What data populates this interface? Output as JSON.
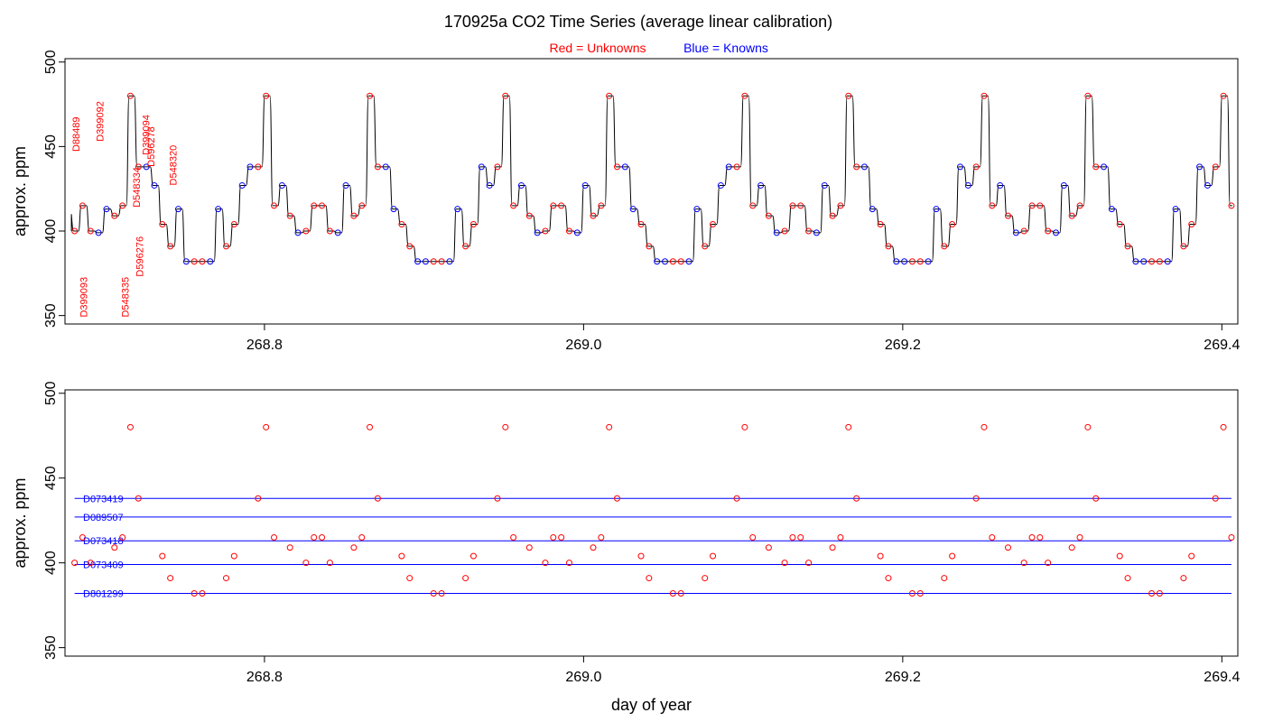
{
  "title": "170925a   CO2 Time Series (average linear calibration)",
  "legend": {
    "unknowns": "Red = Unknowns",
    "knowns": "Blue = Knowns"
  },
  "colors": {
    "unknown": "#ff0000",
    "known": "#0000ff",
    "line": "#000000"
  },
  "chart_data": [
    {
      "type": "line",
      "ylabel": "approx. ppm",
      "xlabel": "",
      "xlim": [
        268.675,
        269.41
      ],
      "ylim": [
        345,
        502
      ],
      "x_ticks": [
        "268.8",
        "269.0",
        "269.2",
        "269.4"
      ],
      "y_ticks": [
        "350",
        "400",
        "450",
        "500"
      ],
      "x_tick_values": [
        268.8,
        269.0,
        269.2,
        269.4
      ],
      "y_tick_values": [
        350,
        400,
        450,
        500
      ],
      "start_day": 268.679,
      "sample_interval_days": 0.005,
      "series": [
        {
          "name": "Unknowns",
          "points": [
            [
              268.681,
              400
            ],
            [
              268.686,
              415
            ],
            [
              268.691,
              400
            ],
            [
              268.706,
              409
            ],
            [
              268.711,
              415
            ],
            [
              268.716,
              480
            ],
            [
              268.721,
              438
            ],
            [
              268.736,
              404
            ],
            [
              268.741,
              391
            ],
            [
              268.756,
              382
            ],
            [
              268.761,
              382
            ],
            [
              268.776,
              391
            ],
            [
              268.781,
              404
            ],
            [
              268.796,
              438
            ],
            [
              268.801,
              480
            ],
            [
              268.806,
              415
            ],
            [
              268.816,
              409
            ],
            [
              268.826,
              400
            ],
            [
              268.831,
              415
            ],
            [
              268.836,
              415
            ],
            [
              268.841,
              400
            ],
            [
              268.856,
              409
            ],
            [
              268.861,
              415
            ],
            [
              268.866,
              480
            ],
            [
              268.871,
              438
            ],
            [
              268.886,
              404
            ],
            [
              268.891,
              391
            ],
            [
              268.906,
              382
            ],
            [
              268.911,
              382
            ],
            [
              268.926,
              391
            ],
            [
              268.931,
              404
            ],
            [
              268.946,
              438
            ],
            [
              268.951,
              480
            ],
            [
              268.956,
              415
            ],
            [
              268.966,
              409
            ],
            [
              268.976,
              400
            ],
            [
              268.981,
              415
            ],
            [
              268.986,
              415
            ],
            [
              268.991,
              400
            ],
            [
              269.006,
              409
            ],
            [
              269.011,
              415
            ],
            [
              269.016,
              480
            ],
            [
              269.021,
              438
            ],
            [
              269.036,
              404
            ],
            [
              269.041,
              391
            ],
            [
              269.056,
              382
            ],
            [
              269.061,
              382
            ],
            [
              269.076,
              391
            ],
            [
              269.081,
              404
            ],
            [
              269.096,
              438
            ],
            [
              269.101,
              480
            ],
            [
              269.106,
              415
            ],
            [
              269.116,
              409
            ],
            [
              269.126,
              400
            ],
            [
              269.131,
              415
            ],
            [
              269.136,
              415
            ],
            [
              269.141,
              400
            ],
            [
              269.156,
              409
            ],
            [
              269.161,
              415
            ],
            [
              269.166,
              480
            ],
            [
              269.171,
              438
            ],
            [
              269.186,
              404
            ],
            [
              269.191,
              391
            ],
            [
              269.206,
              382
            ],
            [
              269.211,
              382
            ],
            [
              269.226,
              391
            ],
            [
              269.231,
              404
            ],
            [
              269.246,
              438
            ],
            [
              269.251,
              480
            ],
            [
              269.256,
              415
            ],
            [
              269.266,
              409
            ],
            [
              269.276,
              400
            ],
            [
              269.281,
              415
            ],
            [
              269.286,
              415
            ],
            [
              269.291,
              400
            ],
            [
              269.306,
              409
            ],
            [
              269.311,
              415
            ],
            [
              269.316,
              480
            ],
            [
              269.321,
              438
            ],
            [
              269.336,
              404
            ],
            [
              269.341,
              391
            ],
            [
              269.356,
              382
            ],
            [
              269.361,
              382
            ],
            [
              269.376,
              391
            ],
            [
              269.381,
              404
            ],
            [
              269.396,
              438
            ],
            [
              269.401,
              480
            ],
            [
              269.406,
              415
            ]
          ]
        },
        {
          "name": "Knowns",
          "points": [
            [
              268.696,
              399
            ],
            [
              268.701,
              413
            ],
            [
              268.726,
              438
            ],
            [
              268.731,
              427
            ],
            [
              268.746,
              413
            ],
            [
              268.751,
              382
            ],
            [
              268.766,
              382
            ],
            [
              268.771,
              413
            ],
            [
              268.786,
              427
            ],
            [
              268.791,
              438
            ],
            [
              268.811,
              427
            ],
            [
              268.821,
              399
            ],
            [
              268.846,
              399
            ],
            [
              268.851,
              427
            ],
            [
              268.876,
              438
            ],
            [
              268.881,
              413
            ],
            [
              268.896,
              382
            ],
            [
              268.901,
              382
            ],
            [
              268.916,
              382
            ],
            [
              268.921,
              413
            ],
            [
              268.936,
              438
            ],
            [
              268.941,
              427
            ],
            [
              268.961,
              427
            ],
            [
              268.971,
              399
            ],
            [
              268.996,
              399
            ],
            [
              269.001,
              427
            ],
            [
              269.026,
              438
            ],
            [
              269.031,
              413
            ],
            [
              269.046,
              382
            ],
            [
              269.051,
              382
            ],
            [
              269.066,
              382
            ],
            [
              269.071,
              413
            ],
            [
              269.086,
              427
            ],
            [
              269.091,
              438
            ],
            [
              269.111,
              427
            ],
            [
              269.121,
              399
            ],
            [
              269.146,
              399
            ],
            [
              269.151,
              427
            ],
            [
              269.176,
              438
            ],
            [
              269.181,
              413
            ],
            [
              269.196,
              382
            ],
            [
              269.201,
              382
            ],
            [
              269.216,
              382
            ],
            [
              269.221,
              413
            ],
            [
              269.236,
              438
            ],
            [
              269.241,
              427
            ],
            [
              269.261,
              427
            ],
            [
              269.271,
              399
            ],
            [
              269.296,
              399
            ],
            [
              269.301,
              427
            ],
            [
              269.326,
              438
            ],
            [
              269.331,
              413
            ],
            [
              269.346,
              382
            ],
            [
              269.351,
              382
            ],
            [
              269.366,
              382
            ],
            [
              269.371,
              413
            ],
            [
              269.386,
              438
            ],
            [
              269.391,
              427
            ]
          ]
        }
      ],
      "labels_above": [
        {
          "text": "D88489",
          "x": 268.684,
          "y": 447
        },
        {
          "text": "D399092",
          "x": 268.699,
          "y": 453
        },
        {
          "text": "D548334",
          "x": 268.722,
          "y": 414
        },
        {
          "text": "D399094",
          "x": 268.728,
          "y": 445
        },
        {
          "text": "D596278",
          "x": 268.731,
          "y": 438
        },
        {
          "text": "D548320",
          "x": 268.745,
          "y": 427
        }
      ],
      "labels_below": [
        {
          "text": "D399093",
          "x": 268.689,
          "y": 349
        },
        {
          "text": "D548335",
          "x": 268.715,
          "y": 349
        },
        {
          "text": "D596276",
          "x": 268.724,
          "y": 373
        }
      ]
    },
    {
      "type": "scatter",
      "ylabel": "approx. ppm",
      "xlabel": "day of year",
      "xlim": [
        268.675,
        269.41
      ],
      "ylim": [
        345,
        502
      ],
      "x_ticks": [
        "268.8",
        "269.0",
        "269.2",
        "269.4"
      ],
      "y_ticks": [
        "350",
        "400",
        "450",
        "500"
      ],
      "x_tick_values": [
        268.8,
        269.0,
        269.2,
        269.4
      ],
      "y_tick_values": [
        350,
        400,
        450,
        500
      ],
      "reference_lines": [
        {
          "name": "D073419",
          "value": 438
        },
        {
          "name": "D089507",
          "value": 427
        },
        {
          "name": "D073418",
          "value": 413
        },
        {
          "name": "D073409",
          "value": 399
        },
        {
          "name": "D801299",
          "value": 382
        }
      ],
      "reference_x_range": [
        268.681,
        269.406
      ],
      "series": [
        {
          "name": "Unknowns",
          "source": "unknowns_of_top_panel"
        }
      ]
    }
  ]
}
